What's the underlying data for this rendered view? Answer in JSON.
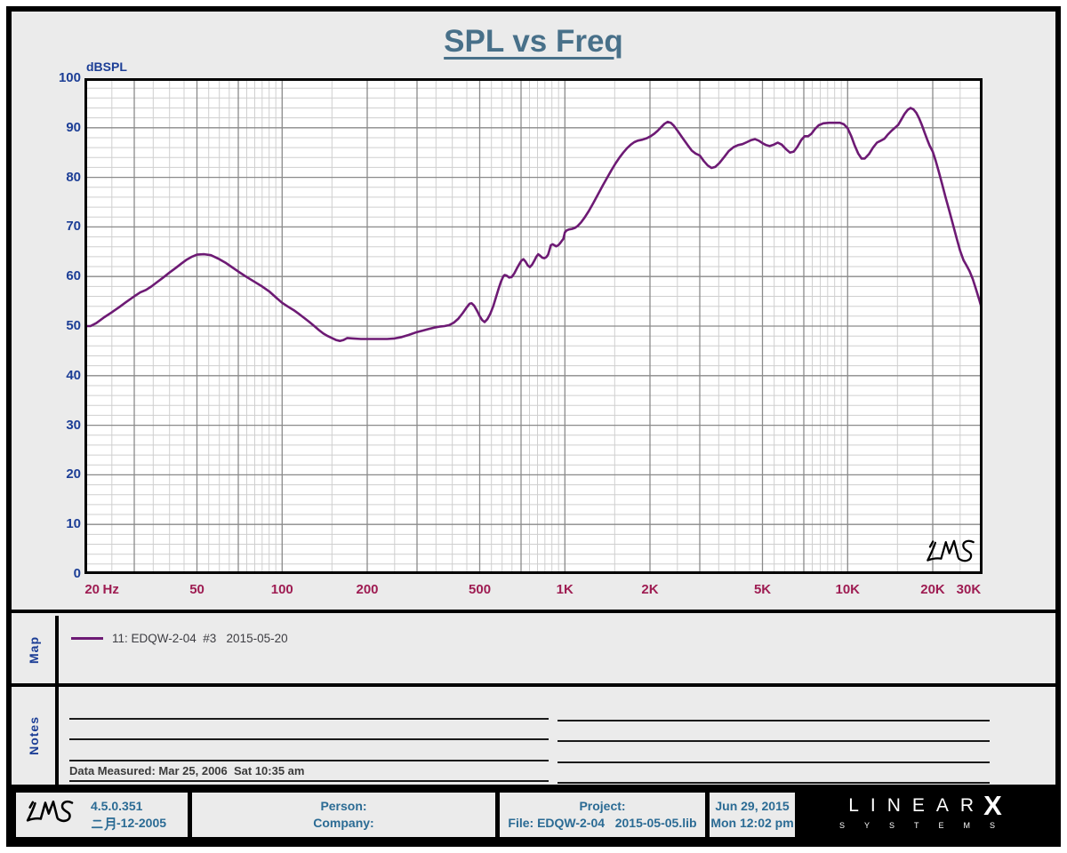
{
  "title": "SPL vs Freq",
  "chart_data": {
    "type": "line",
    "title": "SPL vs Freq",
    "ylabel": "dBSPL",
    "xlabel_unit": "Hz",
    "x_scale": "log",
    "xlim": [
      20,
      30000
    ],
    "ylim": [
      0,
      100
    ],
    "y_major_step": 10,
    "y_minor_step": 2,
    "grid": "on",
    "grid_minor_color": "#cfcfcf",
    "grid_major_color": "#8a8a8a",
    "grid_dark_mantissas": [
      1,
      2,
      3,
      5,
      7
    ],
    "grid_minor_mantissa_step": 0.5,
    "x_ticks": [
      {
        "f": 21.3,
        "label": "20"
      },
      {
        "f": 24.8,
        "label": "Hz"
      },
      {
        "f": 50,
        "label": "50"
      },
      {
        "f": 100,
        "label": "100"
      },
      {
        "f": 200,
        "label": "200"
      },
      {
        "f": 500,
        "label": "500"
      },
      {
        "f": 1000,
        "label": "1K"
      },
      {
        "f": 2000,
        "label": "2K"
      },
      {
        "f": 5000,
        "label": "5K"
      },
      {
        "f": 10000,
        "label": "10K"
      },
      {
        "f": 20000,
        "label": "20K"
      },
      {
        "f": 26800,
        "label": "30K"
      }
    ],
    "series": [
      {
        "name": "11: EDQW-2-04  #3   2015-05-20",
        "color": "#6d1a74",
        "points": [
          [
            20,
            50.0
          ],
          [
            21,
            50.0
          ],
          [
            22,
            50.6
          ],
          [
            23.5,
            51.8
          ],
          [
            25,
            52.8
          ],
          [
            26.5,
            53.8
          ],
          [
            28,
            54.8
          ],
          [
            30,
            56.0
          ],
          [
            31.5,
            56.8
          ],
          [
            33,
            57.3
          ],
          [
            34.5,
            58.0
          ],
          [
            36,
            58.8
          ],
          [
            38,
            59.8
          ],
          [
            40,
            60.8
          ],
          [
            42,
            61.7
          ],
          [
            44,
            62.6
          ],
          [
            46,
            63.4
          ],
          [
            48,
            64.0
          ],
          [
            50,
            64.4
          ],
          [
            53,
            64.5
          ],
          [
            56,
            64.3
          ],
          [
            58,
            63.9
          ],
          [
            60,
            63.5
          ],
          [
            63,
            62.8
          ],
          [
            66,
            62.0
          ],
          [
            70,
            61.0
          ],
          [
            75,
            59.9
          ],
          [
            80,
            58.9
          ],
          [
            85,
            58.0
          ],
          [
            90,
            57.0
          ],
          [
            95,
            55.8
          ],
          [
            100,
            54.7
          ],
          [
            105,
            53.9
          ],
          [
            110,
            53.2
          ],
          [
            115,
            52.4
          ],
          [
            120,
            51.6
          ],
          [
            125,
            50.8
          ],
          [
            130,
            50.0
          ],
          [
            135,
            49.2
          ],
          [
            140,
            48.5
          ],
          [
            145,
            48.0
          ],
          [
            150,
            47.6
          ],
          [
            155,
            47.2
          ],
          [
            160,
            47.0
          ],
          [
            165,
            47.2
          ],
          [
            170,
            47.6
          ],
          [
            178,
            47.5
          ],
          [
            190,
            47.4
          ],
          [
            205,
            47.4
          ],
          [
            220,
            47.4
          ],
          [
            235,
            47.4
          ],
          [
            250,
            47.5
          ],
          [
            265,
            47.8
          ],
          [
            280,
            48.2
          ],
          [
            300,
            48.8
          ],
          [
            315,
            49.1
          ],
          [
            330,
            49.4
          ],
          [
            345,
            49.7
          ],
          [
            360,
            49.9
          ],
          [
            375,
            50.0
          ],
          [
            390,
            50.2
          ],
          [
            405,
            50.7
          ],
          [
            420,
            51.5
          ],
          [
            435,
            52.6
          ],
          [
            450,
            53.8
          ],
          [
            460,
            54.5
          ],
          [
            468,
            54.6
          ],
          [
            478,
            54.1
          ],
          [
            490,
            53.0
          ],
          [
            500,
            52.0
          ],
          [
            510,
            51.2
          ],
          [
            520,
            50.8
          ],
          [
            532,
            51.4
          ],
          [
            545,
            52.5
          ],
          [
            558,
            54.0
          ],
          [
            570,
            55.7
          ],
          [
            582,
            57.4
          ],
          [
            594,
            58.9
          ],
          [
            605,
            60.0
          ],
          [
            612,
            60.3
          ],
          [
            622,
            60.2
          ],
          [
            635,
            59.8
          ],
          [
            648,
            59.9
          ],
          [
            662,
            60.6
          ],
          [
            676,
            61.6
          ],
          [
            690,
            62.5
          ],
          [
            702,
            63.2
          ],
          [
            714,
            63.5
          ],
          [
            726,
            63.0
          ],
          [
            740,
            62.2
          ],
          [
            752,
            61.9
          ],
          [
            766,
            62.4
          ],
          [
            780,
            63.2
          ],
          [
            793,
            64.0
          ],
          [
            805,
            64.5
          ],
          [
            818,
            64.2
          ],
          [
            832,
            63.8
          ],
          [
            846,
            63.7
          ],
          [
            860,
            63.9
          ],
          [
            872,
            64.4
          ],
          [
            882,
            65.3
          ],
          [
            892,
            66.3
          ],
          [
            905,
            66.5
          ],
          [
            918,
            66.3
          ],
          [
            932,
            66.1
          ],
          [
            948,
            66.3
          ],
          [
            962,
            66.7
          ],
          [
            976,
            67.2
          ],
          [
            988,
            67.6
          ],
          [
            1000,
            68.9
          ],
          [
            1015,
            69.3
          ],
          [
            1035,
            69.5
          ],
          [
            1060,
            69.6
          ],
          [
            1085,
            69.8
          ],
          [
            1110,
            70.2
          ],
          [
            1140,
            70.9
          ],
          [
            1175,
            71.9
          ],
          [
            1215,
            73.2
          ],
          [
            1260,
            74.8
          ],
          [
            1310,
            76.6
          ],
          [
            1360,
            78.3
          ],
          [
            1410,
            79.9
          ],
          [
            1460,
            81.4
          ],
          [
            1510,
            82.8
          ],
          [
            1560,
            84.0
          ],
          [
            1610,
            85.0
          ],
          [
            1660,
            85.9
          ],
          [
            1710,
            86.6
          ],
          [
            1760,
            87.1
          ],
          [
            1810,
            87.4
          ],
          [
            1880,
            87.6
          ],
          [
            1950,
            87.9
          ],
          [
            2010,
            88.3
          ],
          [
            2070,
            88.8
          ],
          [
            2130,
            89.4
          ],
          [
            2190,
            90.1
          ],
          [
            2250,
            90.8
          ],
          [
            2310,
            91.2
          ],
          [
            2370,
            91.0
          ],
          [
            2430,
            90.4
          ],
          [
            2510,
            89.3
          ],
          [
            2610,
            87.9
          ],
          [
            2710,
            86.6
          ],
          [
            2810,
            85.4
          ],
          [
            2900,
            84.8
          ],
          [
            3000,
            84.4
          ],
          [
            3100,
            83.3
          ],
          [
            3200,
            82.4
          ],
          [
            3300,
            81.9
          ],
          [
            3400,
            82.1
          ],
          [
            3520,
            82.9
          ],
          [
            3660,
            84.1
          ],
          [
            3800,
            85.3
          ],
          [
            3950,
            86.1
          ],
          [
            4100,
            86.5
          ],
          [
            4250,
            86.7
          ],
          [
            4400,
            87.1
          ],
          [
            4550,
            87.5
          ],
          [
            4700,
            87.7
          ],
          [
            4850,
            87.4
          ],
          [
            5000,
            86.9
          ],
          [
            5150,
            86.5
          ],
          [
            5300,
            86.3
          ],
          [
            5480,
            86.6
          ],
          [
            5660,
            87.0
          ],
          [
            5850,
            86.6
          ],
          [
            6050,
            85.7
          ],
          [
            6250,
            85.0
          ],
          [
            6450,
            85.2
          ],
          [
            6650,
            86.2
          ],
          [
            6850,
            87.5
          ],
          [
            7050,
            88.3
          ],
          [
            7250,
            88.3
          ],
          [
            7450,
            88.8
          ],
          [
            7650,
            89.7
          ],
          [
            7900,
            90.5
          ],
          [
            8200,
            90.9
          ],
          [
            8600,
            91.0
          ],
          [
            9000,
            91.0
          ],
          [
            9400,
            91.0
          ],
          [
            9700,
            90.7
          ],
          [
            10000,
            89.9
          ],
          [
            10300,
            88.3
          ],
          [
            10600,
            86.4
          ],
          [
            10900,
            84.8
          ],
          [
            11200,
            83.8
          ],
          [
            11500,
            83.8
          ],
          [
            11900,
            84.7
          ],
          [
            12300,
            86.0
          ],
          [
            12700,
            87.0
          ],
          [
            13100,
            87.4
          ],
          [
            13500,
            87.8
          ],
          [
            13900,
            88.7
          ],
          [
            14300,
            89.4
          ],
          [
            14700,
            90.0
          ],
          [
            15100,
            90.6
          ],
          [
            15500,
            91.7
          ],
          [
            15900,
            92.8
          ],
          [
            16300,
            93.6
          ],
          [
            16700,
            94.0
          ],
          [
            17100,
            93.7
          ],
          [
            17500,
            93.0
          ],
          [
            17900,
            91.9
          ],
          [
            18300,
            90.6
          ],
          [
            18700,
            89.1
          ],
          [
            19100,
            87.7
          ],
          [
            19500,
            86.4
          ],
          [
            20000,
            85.2
          ],
          [
            20500,
            83.3
          ],
          [
            21000,
            81.2
          ],
          [
            21600,
            78.6
          ],
          [
            22200,
            76.0
          ],
          [
            22900,
            73.2
          ],
          [
            23600,
            70.4
          ],
          [
            24300,
            67.7
          ],
          [
            25000,
            65.2
          ],
          [
            25700,
            63.3
          ],
          [
            26300,
            62.3
          ],
          [
            27000,
            61.1
          ],
          [
            27700,
            59.5
          ],
          [
            28400,
            57.6
          ],
          [
            29200,
            55.3
          ],
          [
            30000,
            53.0
          ]
        ]
      }
    ]
  },
  "map_panel": {
    "label": "Map",
    "legend": {
      "swatch_color": "#6d1a74",
      "text": "11: EDQW-2-04  #3   2015-05-20"
    }
  },
  "notes_panel": {
    "label": "Notes",
    "data_measured": "Data Measured: Mar 25, 2006  Sat 10:35 am"
  },
  "footer": {
    "version_build": "4.5.0.351",
    "version_date": "二月-12-2005",
    "version_date_cjk": "二月",
    "version_date_rest": "-12-2005",
    "person_label": "Person:",
    "company_label": "Company:",
    "project_label": "Project:",
    "file_label": "File: EDQW-2-04   2015-05-05.lib",
    "date": "Jun 29, 2015",
    "time": "Mon 12:02 pm",
    "brand_line1": "LINEAR",
    "brand_x": "X",
    "brand_line2": "SYSTEMS"
  },
  "watermark": "LMS",
  "colors": {
    "title": "#487089",
    "axis_y_labels": "#1c3e96",
    "axis_x_labels": "#9e1c52",
    "curve": "#6d1a74",
    "footer_text": "#2b6b94",
    "panel_background": "#ebebeb"
  }
}
